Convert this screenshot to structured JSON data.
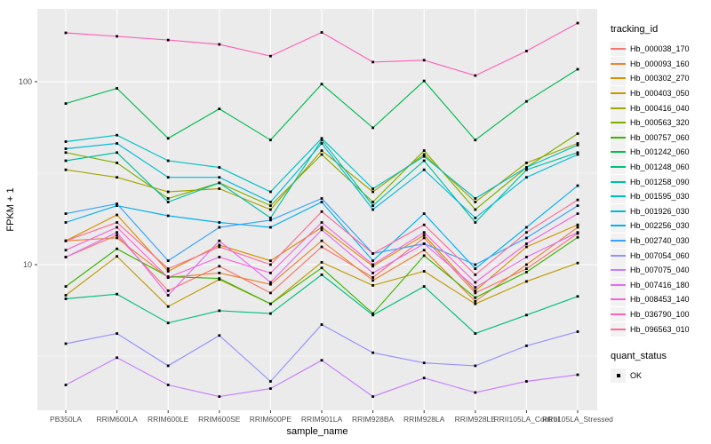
{
  "figure": {
    "panel_bg": "#EBEBEB",
    "grid_color": "#FFFFFF",
    "tick_label_color": "#4D4D4D",
    "axis_title_color": "#000000",
    "point_color": "#000000"
  },
  "chart_data": {
    "type": "line",
    "title": "",
    "xlabel": "sample_name",
    "ylabel": "FPKM + 1",
    "y_scale": "log10",
    "ylim": [
      1.6,
      250
    ],
    "y_major_ticks": [
      10,
      100
    ],
    "y_minor_ticks": [
      3.162,
      31.623
    ],
    "grid": true,
    "legend_position": "right",
    "point_marker": "black square",
    "x_categories": [
      "PB350LA",
      "RRIM600LA",
      "RRIM600LE",
      "RRIM600SE",
      "RRIM600PE",
      "RRIM901LA",
      "RRIM928BA",
      "RRIM928LA",
      "RRIM928LE",
      "RRII105LA_Control",
      "RRII105LA_Stressed"
    ],
    "series": [
      {
        "name": "Hb_000038_170",
        "color": "#F8766D",
        "values": [
          11,
          14.5,
          7.2,
          9.8,
          7.0,
          12.5,
          8.5,
          14,
          7.0,
          9.5,
          14.8
        ]
      },
      {
        "name": "Hb_000093_160",
        "color": "#EB8335",
        "values": [
          13.5,
          14,
          8.5,
          9,
          7.8,
          13.5,
          8.2,
          12,
          6.3,
          10,
          16
        ]
      },
      {
        "name": "Hb_000302_270",
        "color": "#D89000",
        "values": [
          13.5,
          18.7,
          9.2,
          12.8,
          10.5,
          16,
          9.8,
          14.5,
          7.2,
          12.5,
          16.5
        ]
      },
      {
        "name": "Hb_000403_050",
        "color": "#C09B00",
        "values": [
          6.8,
          11.1,
          5.9,
          8.3,
          6.1,
          10.3,
          7.7,
          9.2,
          6.1,
          8.1,
          10.2
        ]
      },
      {
        "name": "Hb_000416_040",
        "color": "#A3A500",
        "values": [
          33,
          30,
          25,
          26,
          20,
          42,
          25,
          40,
          22,
          36,
          46
        ]
      },
      {
        "name": "Hb_000563_320",
        "color": "#7CAE00",
        "values": [
          41,
          36,
          23,
          28,
          21,
          40,
          22,
          42,
          20,
          34,
          52
        ]
      },
      {
        "name": "Hb_000757_060",
        "color": "#39B600",
        "values": [
          7.6,
          12.2,
          8.6,
          8.4,
          6.1,
          9.6,
          5.4,
          11.2,
          6.6,
          9.1,
          14.1
        ]
      },
      {
        "name": "Hb_001242_060",
        "color": "#00BB4E",
        "values": [
          76,
          92,
          49,
          71,
          48,
          97,
          56,
          101,
          48,
          78,
          117
        ]
      },
      {
        "name": "Hb_001248_060",
        "color": "#00BF7D",
        "values": [
          6.5,
          6.9,
          4.8,
          5.6,
          5.4,
          8.8,
          5.3,
          7.6,
          4.2,
          5.3,
          6.7
        ]
      },
      {
        "name": "Hb_001258_090",
        "color": "#00C1A3",
        "values": [
          37,
          41,
          22,
          28,
          18,
          48,
          21,
          37,
          17,
          33,
          41
        ]
      },
      {
        "name": "Hb_001595_030",
        "color": "#00BFC4",
        "values": [
          47,
          51,
          37,
          34,
          25,
          49,
          26,
          39,
          23,
          34,
          45
        ]
      },
      {
        "name": "Hb_001926_030",
        "color": "#00BADE",
        "values": [
          43,
          46,
          30,
          30,
          22,
          46,
          20,
          33,
          18,
          30,
          40
        ]
      },
      {
        "name": "Hb_002256_030",
        "color": "#00B0F6",
        "values": [
          17,
          21,
          18.5,
          17,
          16,
          22,
          10.5,
          19,
          9.5,
          16,
          27
        ]
      },
      {
        "name": "Hb_002740_030",
        "color": "#35A2FF",
        "values": [
          19,
          21.5,
          10.5,
          16,
          17.5,
          23,
          11.5,
          13,
          10,
          14,
          21
        ]
      },
      {
        "name": "Hb_007054_060",
        "color": "#9590FF",
        "values": [
          3.7,
          4.2,
          2.8,
          4.1,
          2.3,
          4.7,
          3.3,
          2.9,
          2.8,
          3.6,
          4.3
        ]
      },
      {
        "name": "Hb_007075_040",
        "color": "#C77CFF",
        "values": [
          2.2,
          3.1,
          2.2,
          1.9,
          2.1,
          3.0,
          1.9,
          2.4,
          2.0,
          2.3,
          2.5
        ]
      },
      {
        "name": "Hb_007416_180",
        "color": "#E76BF3",
        "values": [
          11,
          15,
          6.8,
          13.5,
          8,
          15.5,
          9,
          13,
          7.5,
          11,
          15
        ]
      },
      {
        "name": "Hb_008453_140",
        "color": "#FA62DB",
        "values": [
          12,
          16,
          8.5,
          11,
          9,
          17,
          10,
          15,
          8,
          13,
          19
        ]
      },
      {
        "name": "Hb_036790_100",
        "color": "#FF62BC",
        "values": [
          185,
          177,
          169,
          160,
          138,
          186,
          128,
          131,
          108,
          147,
          209
        ]
      },
      {
        "name": "Hb_096563_010",
        "color": "#FF6A98",
        "values": [
          13.5,
          17,
          9.5,
          12.5,
          10,
          19.5,
          11.5,
          16.5,
          8.8,
          15,
          22.6
        ]
      }
    ],
    "legend": {
      "tracking_title": "tracking_id",
      "quant_title": "quant_status",
      "quant_label": "OK",
      "quant_marker_color": "#000000"
    }
  }
}
